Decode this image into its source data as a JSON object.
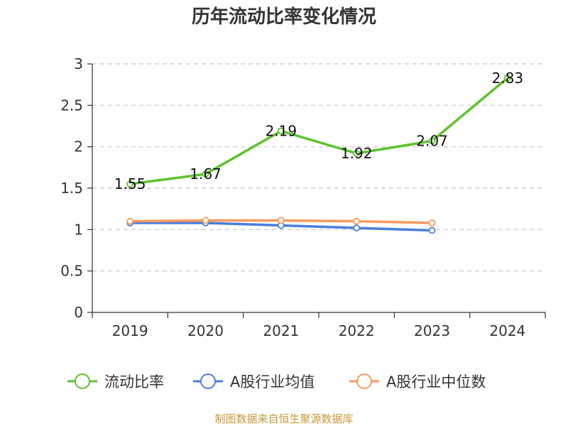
{
  "chart_data": {
    "type": "line",
    "title": "历年流动比率变化情况",
    "categories": [
      "2019",
      "2020",
      "2021",
      "2022",
      "2023",
      "2024"
    ],
    "ylim": [
      0,
      3
    ],
    "yticks": [
      0,
      0.5,
      1,
      1.5,
      2,
      2.5,
      3
    ],
    "grid": true,
    "legend_position": "bottom",
    "series": [
      {
        "name": "流动比率",
        "color": "#5cc22d",
        "values": [
          1.55,
          1.67,
          2.19,
          1.92,
          2.07,
          2.83
        ],
        "show_labels": true
      },
      {
        "name": "A股行业均值",
        "color": "#4a7fdd",
        "values": [
          1.08,
          1.08,
          1.05,
          1.02,
          0.99,
          null
        ],
        "show_labels": false
      },
      {
        "name": "A股行业中位数",
        "color": "#f79a5e",
        "values": [
          1.1,
          1.11,
          1.11,
          1.1,
          1.08,
          null
        ],
        "show_labels": false
      }
    ],
    "source": "制图数据来自恒生聚源数据库"
  }
}
